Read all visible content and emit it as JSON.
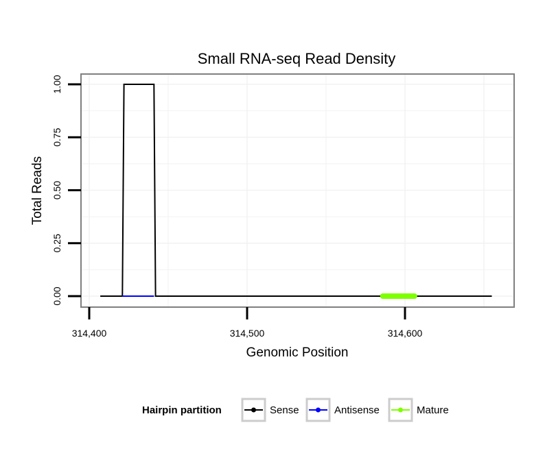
{
  "chart_data": {
    "type": "line",
    "title": "Small RNA-seq Read Density",
    "xlabel": "Genomic Position",
    "ylabel": "Total Reads",
    "xlim": [
      314392,
      314658
    ],
    "ylim": [
      0,
      1.0
    ],
    "x_ticks": [
      314400,
      314500,
      314600
    ],
    "x_tick_labels": [
      "314,400",
      "314,500",
      "314,600"
    ],
    "y_ticks": [
      0.0,
      0.25,
      0.5,
      0.75,
      1.0
    ],
    "y_tick_labels": [
      "0.00",
      "0.25",
      "0.50",
      "0.75",
      "1.00"
    ],
    "grid": true,
    "legend": {
      "title": "Hairpin partition",
      "position": "bottom"
    },
    "series": [
      {
        "name": "Sense",
        "color": "#000000",
        "points": [
          [
            314407,
            0
          ],
          [
            314421,
            0
          ],
          [
            314422,
            1
          ],
          [
            314441,
            1
          ],
          [
            314442,
            0
          ],
          [
            314655,
            0
          ]
        ]
      },
      {
        "name": "Antisense",
        "color": "#0000ff",
        "points": [
          [
            314421,
            0
          ],
          [
            314441,
            0
          ]
        ]
      },
      {
        "name": "Mature",
        "color": "#7fff00",
        "points": [
          [
            314586,
            0
          ],
          [
            314606,
            0
          ]
        ]
      }
    ]
  }
}
